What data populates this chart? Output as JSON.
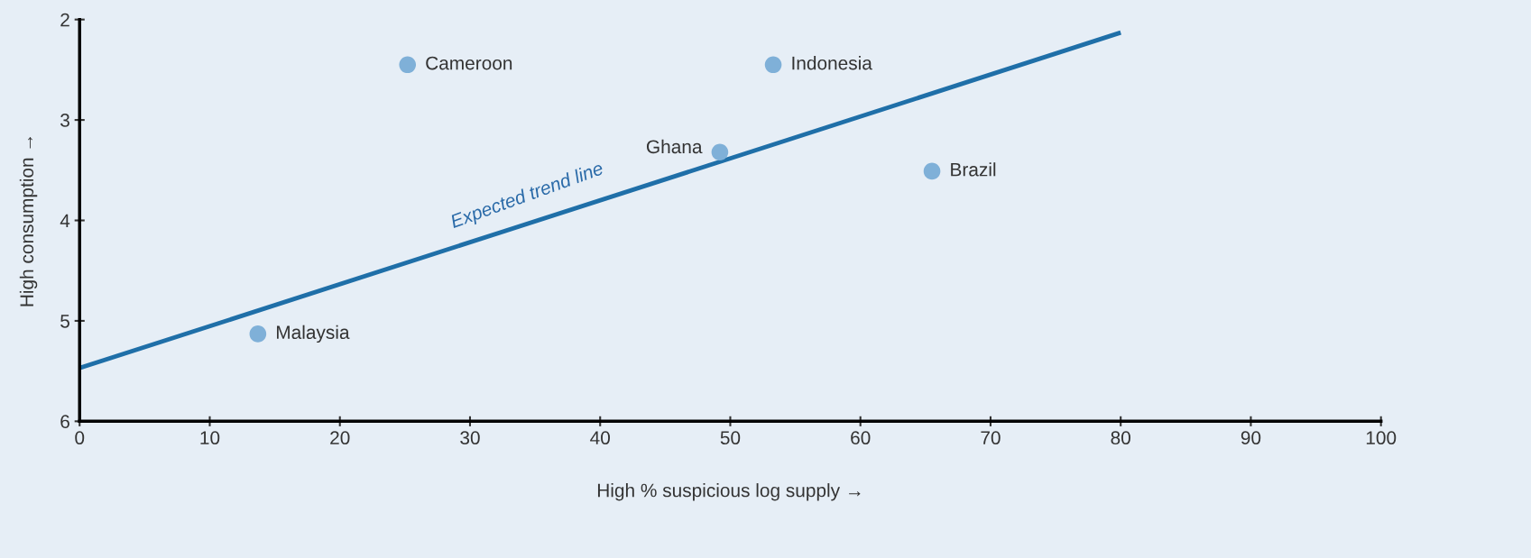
{
  "chart_data": {
    "type": "scatter",
    "xlabel": "High % suspicious log supply →",
    "ylabel": "High consumption →",
    "xlim": [
      0,
      100
    ],
    "xticks": [
      0,
      10,
      20,
      30,
      40,
      50,
      60,
      70,
      80,
      90,
      100
    ],
    "ylim": [
      6,
      2
    ],
    "yticks": [
      2,
      3,
      4,
      5,
      6
    ],
    "grid": false,
    "series": [
      {
        "marker": "circle",
        "color": "#7fb0d8",
        "x": [
          25.2,
          53.3,
          49.2,
          65.5,
          13.7
        ],
        "values": [
          2.45,
          2.45,
          3.32,
          3.51,
          5.13
        ]
      },
      {
        "type": "line",
        "marker": "none",
        "color": "#1f6fa8",
        "x": [
          0,
          80
        ],
        "values": [
          5.47,
          2.13
        ]
      }
    ],
    "annotations": [
      {
        "text": "Cameroon",
        "x": 25.2,
        "y": 2.45
      },
      {
        "text": "Indonesia",
        "x": 53.3,
        "y": 2.45
      },
      {
        "text": "Ghana",
        "x": 49.2,
        "y": 3.32
      },
      {
        "text": "Brazil",
        "x": 65.5,
        "y": 3.51
      },
      {
        "text": "Malaysia",
        "x": 13.7,
        "y": 5.13
      },
      "Expected trend line"
    ]
  }
}
